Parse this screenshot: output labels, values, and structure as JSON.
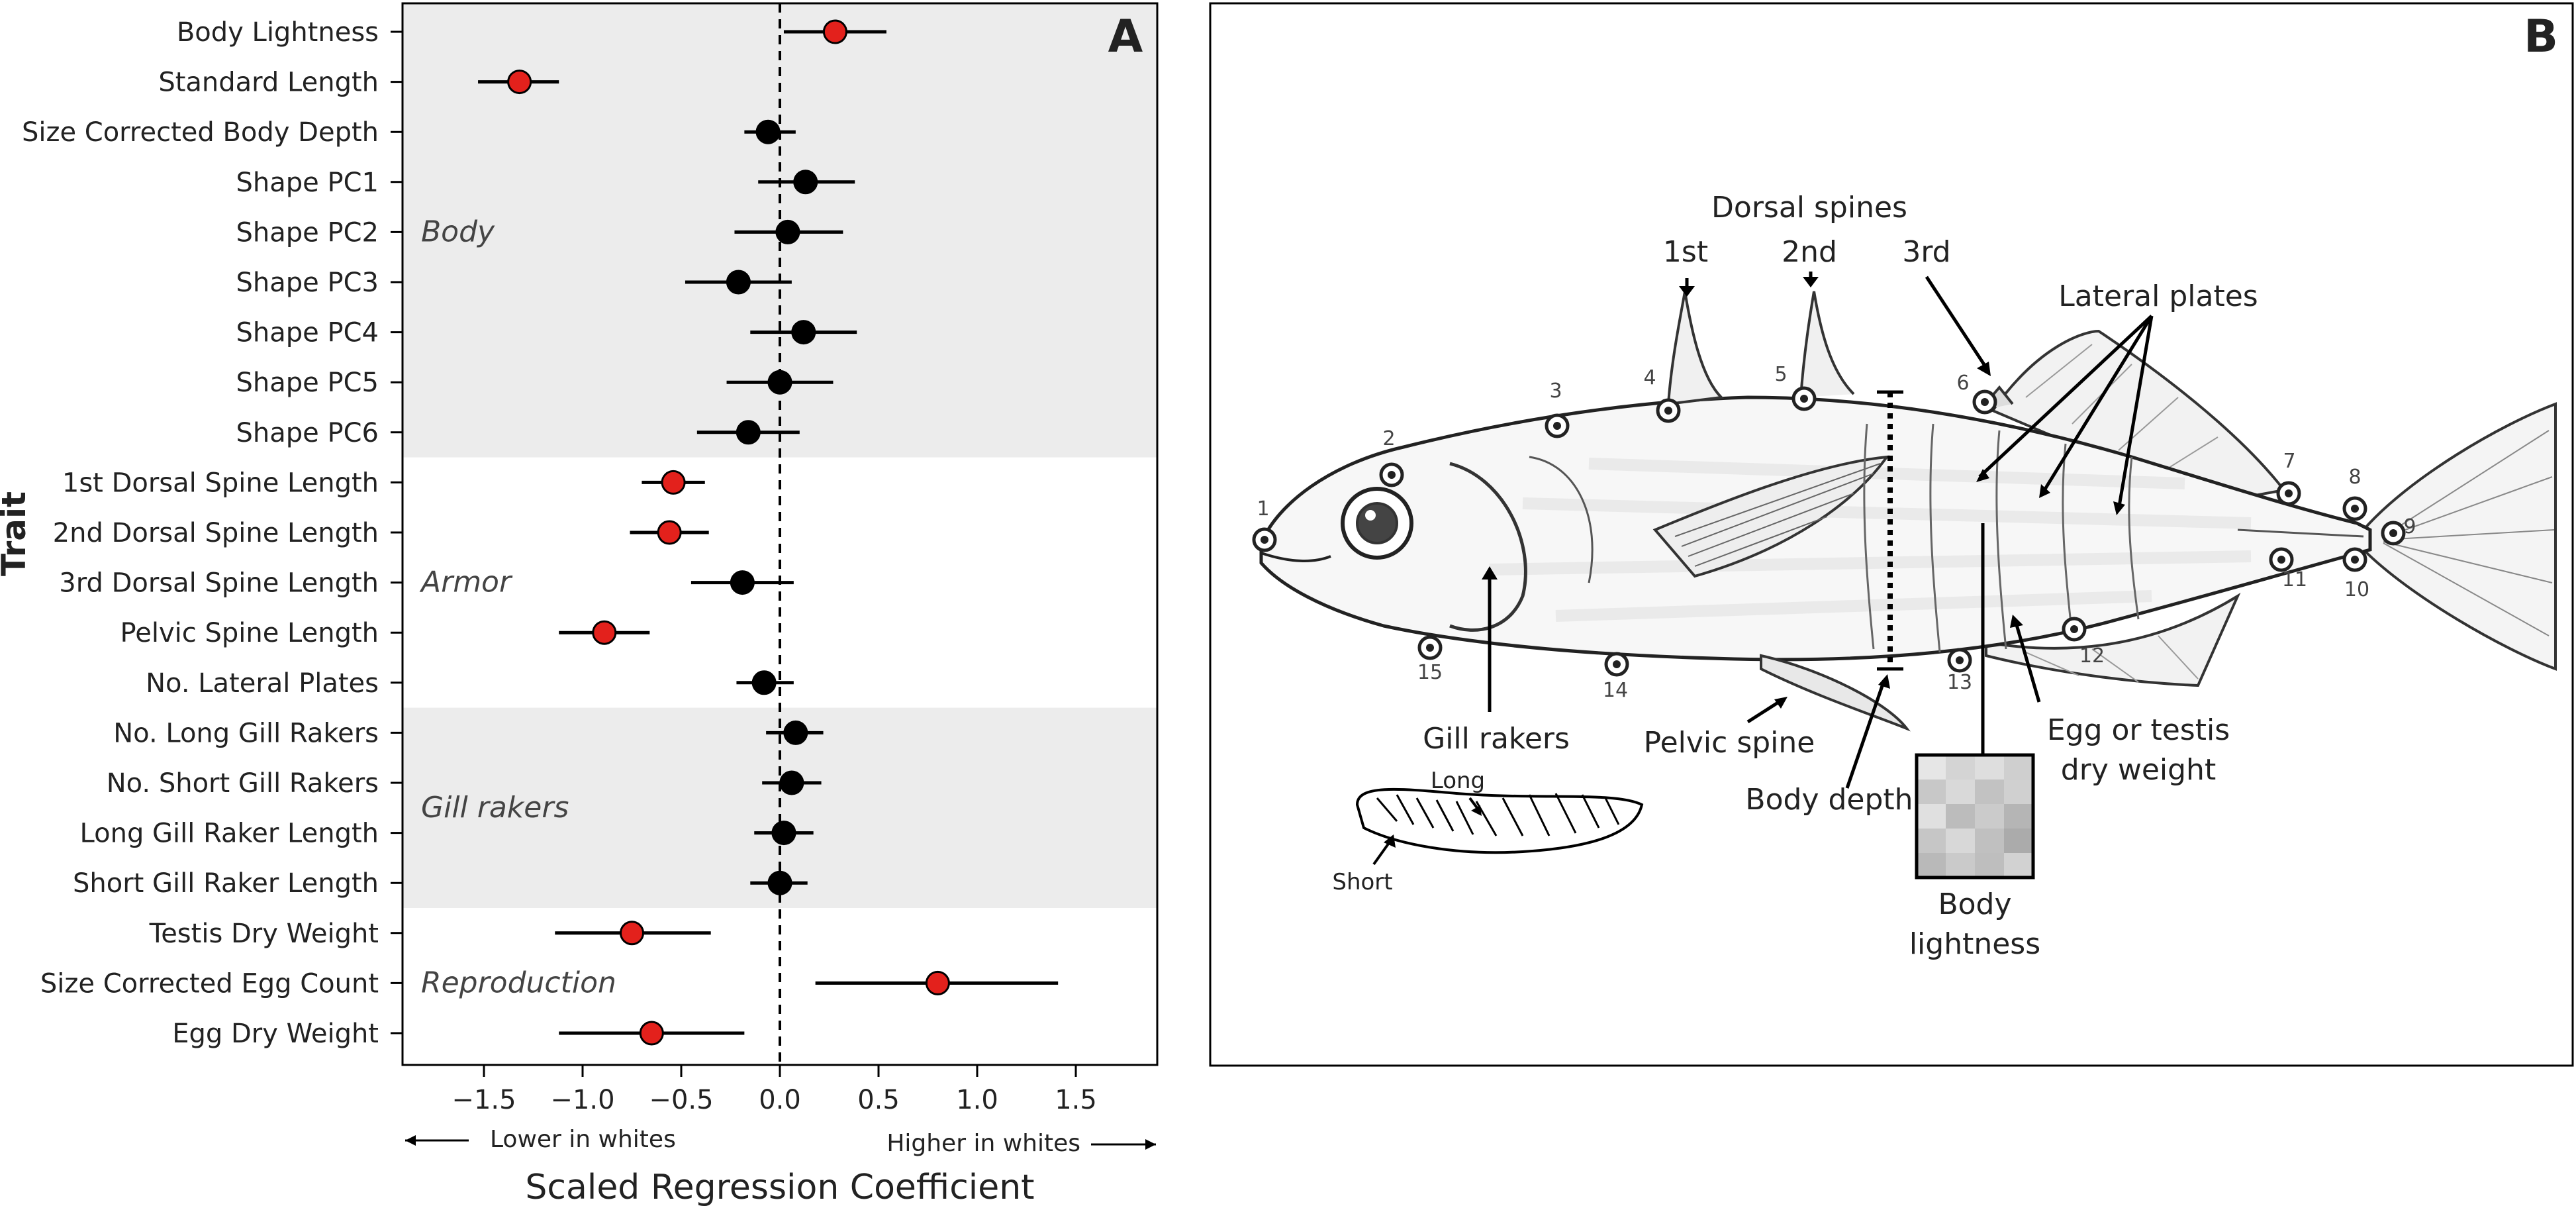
{
  "chart_data": [
    {
      "type": "scatter",
      "panel_label": "A",
      "xlabel": "Scaled Regression Coefficient",
      "ylabel": "Trait",
      "xlim": [
        -1.9,
        1.9
      ],
      "xticks": [
        -1.5,
        -1.0,
        -0.5,
        0.0,
        0.5,
        1.0,
        1.5
      ],
      "xtick_labels": [
        "−1.5",
        "−1.0",
        "−0.5",
        "0.0",
        "0.5",
        "1.0",
        "1.5"
      ],
      "reference_line": 0,
      "direction_left": "Lower in whites",
      "direction_right": "Higher in whites",
      "highlight_color": "#e3211c",
      "point_color": "#000000",
      "groups": [
        {
          "label": "Body",
          "from": 0,
          "to": 8,
          "shaded": true
        },
        {
          "label": "Armor",
          "from": 9,
          "to": 13,
          "shaded": false
        },
        {
          "label": "Gill rakers",
          "from": 14,
          "to": 17,
          "shaded": true
        },
        {
          "label": "Reproduction",
          "from": 18,
          "to": 20,
          "shaded": false
        }
      ],
      "points": [
        {
          "trait": "Body Lightness",
          "estimate": 0.28,
          "lower": 0.02,
          "upper": 0.54,
          "significant": true
        },
        {
          "trait": "Standard Length",
          "estimate": -1.32,
          "lower": -1.53,
          "upper": -1.12,
          "significant": true
        },
        {
          "trait": "Size Corrected Body Depth",
          "estimate": -0.06,
          "lower": -0.18,
          "upper": 0.08,
          "significant": false
        },
        {
          "trait": "Shape PC1",
          "estimate": 0.13,
          "lower": -0.11,
          "upper": 0.38,
          "significant": false
        },
        {
          "trait": "Shape PC2",
          "estimate": 0.04,
          "lower": -0.23,
          "upper": 0.32,
          "significant": false
        },
        {
          "trait": "Shape PC3",
          "estimate": -0.21,
          "lower": -0.48,
          "upper": 0.06,
          "significant": false
        },
        {
          "trait": "Shape PC4",
          "estimate": 0.12,
          "lower": -0.15,
          "upper": 0.39,
          "significant": false
        },
        {
          "trait": "Shape PC5",
          "estimate": 0.0,
          "lower": -0.27,
          "upper": 0.27,
          "significant": false
        },
        {
          "trait": "Shape PC6",
          "estimate": -0.16,
          "lower": -0.42,
          "upper": 0.1,
          "significant": false
        },
        {
          "trait": "1st Dorsal Spine Length",
          "estimate": -0.54,
          "lower": -0.7,
          "upper": -0.38,
          "significant": true
        },
        {
          "trait": "2nd Dorsal Spine Length",
          "estimate": -0.56,
          "lower": -0.76,
          "upper": -0.36,
          "significant": true
        },
        {
          "trait": "3rd Dorsal Spine Length",
          "estimate": -0.19,
          "lower": -0.45,
          "upper": 0.07,
          "significant": false
        },
        {
          "trait": "Pelvic Spine Length",
          "estimate": -0.89,
          "lower": -1.12,
          "upper": -0.66,
          "significant": true
        },
        {
          "trait": "No. Lateral Plates",
          "estimate": -0.08,
          "lower": -0.22,
          "upper": 0.07,
          "significant": false
        },
        {
          "trait": "No. Long Gill Rakers",
          "estimate": 0.08,
          "lower": -0.07,
          "upper": 0.22,
          "significant": false
        },
        {
          "trait": "No. Short Gill Rakers",
          "estimate": 0.06,
          "lower": -0.09,
          "upper": 0.21,
          "significant": false
        },
        {
          "trait": "Long Gill Raker Length",
          "estimate": 0.02,
          "lower": -0.13,
          "upper": 0.17,
          "significant": false
        },
        {
          "trait": "Short Gill Raker Length",
          "estimate": 0.0,
          "lower": -0.15,
          "upper": 0.14,
          "significant": false
        },
        {
          "trait": "Testis Dry Weight",
          "estimate": -0.75,
          "lower": -1.14,
          "upper": -0.35,
          "significant": true
        },
        {
          "trait": "Size Corrected Egg Count",
          "estimate": 0.8,
          "lower": 0.18,
          "upper": 1.41,
          "significant": true
        },
        {
          "trait": "Egg Dry Weight",
          "estimate": -0.65,
          "lower": -1.12,
          "upper": -0.18,
          "significant": true
        }
      ]
    }
  ],
  "panel_b": {
    "panel_label": "B",
    "labels": {
      "dorsal_spines": "Dorsal spines",
      "spine_1": "1st",
      "spine_2": "2nd",
      "spine_3": "3rd",
      "lateral_plates": "Lateral plates",
      "gill_rakers": "Gill rakers",
      "pelvic_spine": "Pelvic spine",
      "body_depth": "Body depth",
      "egg_testis_1": "Egg or testis",
      "egg_testis_2": "dry weight",
      "body_lightness_1": "Body",
      "body_lightness_2": "lightness",
      "long": "Long",
      "short": "Short"
    },
    "landmarks": [
      "1",
      "2",
      "3",
      "4",
      "5",
      "6",
      "7",
      "8",
      "9",
      "10",
      "11",
      "12",
      "13",
      "14",
      "15"
    ]
  }
}
